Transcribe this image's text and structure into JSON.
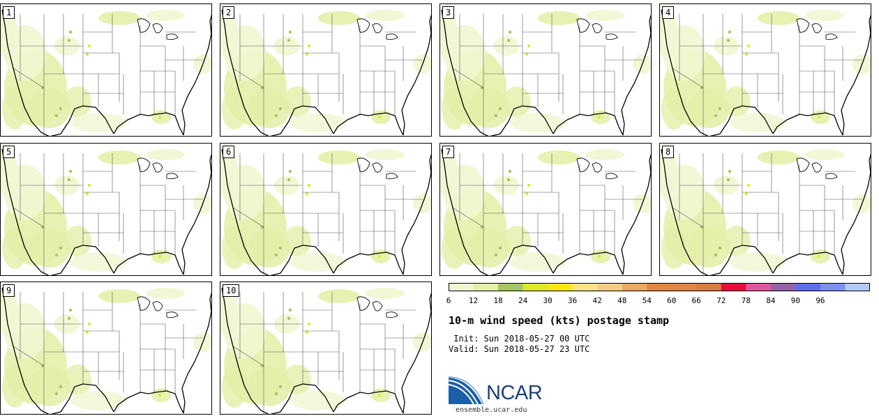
{
  "panels": [
    "1",
    "2",
    "3",
    "4",
    "5",
    "6",
    "7",
    "8",
    "9",
    "10"
  ],
  "colorbar": {
    "ticks": [
      "6",
      "12",
      "18",
      "24",
      "30",
      "36",
      "42",
      "48",
      "54",
      "60",
      "66",
      "72",
      "78",
      "84",
      "90",
      "96"
    ],
    "colors": [
      "#f1f6d2",
      "#e4efa8",
      "#a7c662",
      "#dcea2a",
      "#f8e81a",
      "#fbe486",
      "#f3cd84",
      "#ebaa5c",
      "#e5883f",
      "#e38543",
      "#df7a41",
      "#e80e3c",
      "#e2559e",
      "#9465a6",
      "#5e6cf2",
      "#7c90f6",
      "#b5c8f8"
    ]
  },
  "title": "10-m wind speed (kts) postage stamp",
  "init_line": " Init: Sun 2018-05-27 00 UTC",
  "valid_line": "Valid: Sun 2018-05-27 23 UTC",
  "logo": {
    "text": "NCAR",
    "url": "ensemble.ucar.edu"
  }
}
